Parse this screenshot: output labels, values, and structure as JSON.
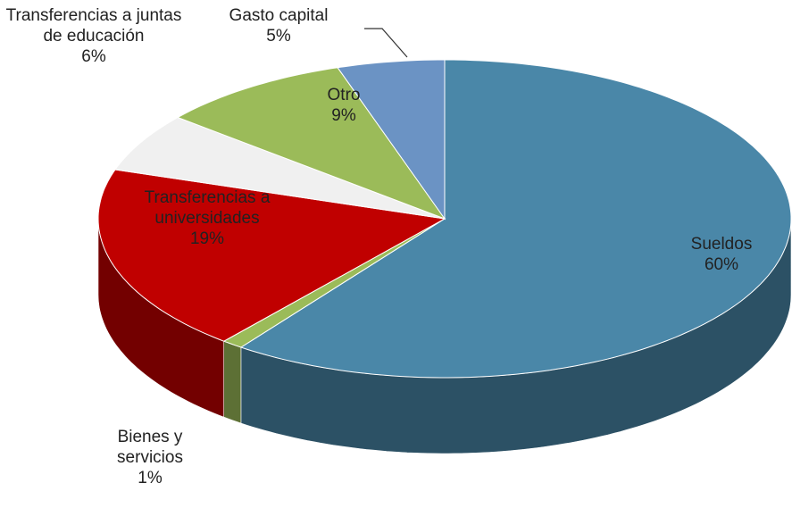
{
  "chart_data": {
    "type": "pie3d",
    "categories": [
      "Sueldos",
      "Bienes y servicios",
      "Transferencias a universidades",
      "Transferencias a juntas de educación",
      "Otro",
      "Gasto capital"
    ],
    "values": [
      60,
      1,
      19,
      6,
      9,
      5
    ],
    "value_labels": [
      "60%",
      "1%",
      "19%",
      "6%",
      "9%",
      "5%"
    ],
    "colors": [
      "#4a87a8",
      "#9bbb59",
      "#c00000",
      "#f0f0f0",
      "#9bbb59",
      "#6b93c4"
    ]
  }
}
